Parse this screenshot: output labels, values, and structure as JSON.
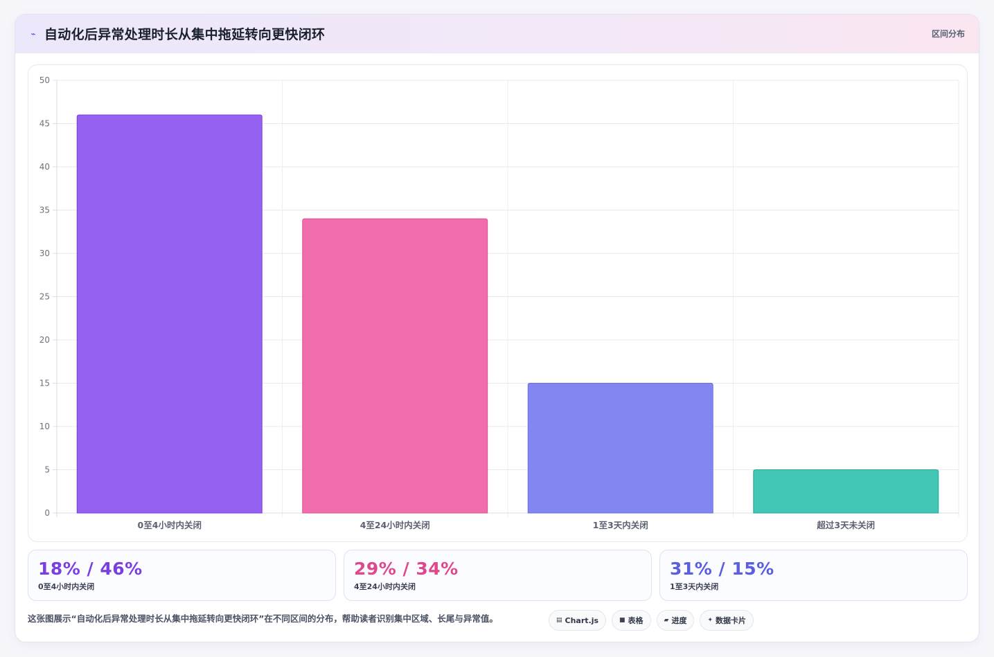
{
  "header": {
    "icon": "trend-icon",
    "title": "自动化后异常处理时长从集中拖延转向更快闭环",
    "tag": "区间分布"
  },
  "chart_data": {
    "type": "bar",
    "categories": [
      "0至4小时内关闭",
      "4至24小时内关闭",
      "1至3天内关闭",
      "超过3天未关闭"
    ],
    "values": [
      46,
      34,
      15,
      5
    ],
    "ylim": [
      0,
      50
    ],
    "yticks": [
      0,
      5,
      10,
      15,
      20,
      25,
      30,
      35,
      40,
      45,
      50
    ],
    "colors": [
      "#9461f0",
      "#f06eab",
      "#8385f0",
      "#43c6b6"
    ],
    "border_colors": [
      "#7c3ae6",
      "#dd4f93",
      "#6a6ce6",
      "#1fa896"
    ],
    "grid": true,
    "title": "",
    "xlabel": "",
    "ylabel": ""
  },
  "stats": [
    {
      "value": "18% / 46%",
      "label": "0至4小时内关闭",
      "color": "#7b3fe0"
    },
    {
      "value": "29% / 34%",
      "label": "4至24小时内关闭",
      "color": "#e0488e"
    },
    {
      "value": "31% / 15%",
      "label": "1至3天内关闭",
      "color": "#5b5fdb"
    }
  ],
  "footer": {
    "description": "这张图展示“自动化后异常处理时长从集中拖延转向更快闭环”在不同区间的分布，帮助读者识别集中区域、长尾与异常值。",
    "chips": [
      {
        "icon": "chart-icon",
        "glyph": "▤",
        "label": "Chart.js"
      },
      {
        "icon": "table-icon",
        "glyph": "■",
        "label": "表格"
      },
      {
        "icon": "progress-icon",
        "glyph": "▰",
        "label": "进度"
      },
      {
        "icon": "sparkle-icon",
        "glyph": "✦",
        "label": "数据卡片"
      }
    ]
  }
}
